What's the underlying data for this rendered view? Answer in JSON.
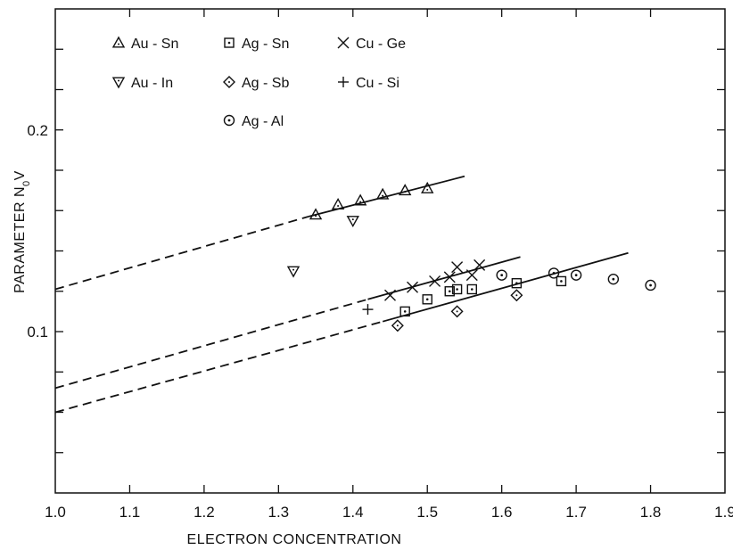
{
  "chart_data": {
    "type": "scatter",
    "title": "",
    "xlabel": "ELECTRON CONCENTRATION",
    "ylabel_main": "PARAMETER N",
    "ylabel_sub": "0",
    "ylabel_tail": "V",
    "xlim": [
      1.0,
      1.9
    ],
    "ylim": [
      0.02,
      0.26
    ],
    "x_ticks": [
      "1.0",
      "1.1",
      "1.2",
      "1.3",
      "1.4",
      "1.5",
      "1.6",
      "1.7",
      "1.8",
      "1.9"
    ],
    "y_tick_labels": [
      {
        "value": 0.1,
        "label": "0.1"
      },
      {
        "value": 0.2,
        "label": "0.2"
      }
    ],
    "legend_position": "top-left",
    "series": [
      {
        "name": "Au - Sn",
        "marker": "triangle-up",
        "points": [
          [
            1.35,
            0.158
          ],
          [
            1.38,
            0.163
          ],
          [
            1.41,
            0.165
          ],
          [
            1.44,
            0.168
          ],
          [
            1.47,
            0.17
          ],
          [
            1.5,
            0.171
          ]
        ]
      },
      {
        "name": "Au - In",
        "marker": "triangle-down",
        "points": [
          [
            1.32,
            0.13
          ],
          [
            1.4,
            0.155
          ]
        ]
      },
      {
        "name": "Ag - Sn",
        "marker": "square-dot",
        "points": [
          [
            1.47,
            0.11
          ],
          [
            1.5,
            0.116
          ],
          [
            1.53,
            0.12
          ],
          [
            1.54,
            0.121
          ],
          [
            1.56,
            0.121
          ],
          [
            1.62,
            0.124
          ],
          [
            1.68,
            0.125
          ]
        ]
      },
      {
        "name": "Ag - Sb",
        "marker": "diamond",
        "points": [
          [
            1.46,
            0.103
          ],
          [
            1.54,
            0.11
          ],
          [
            1.62,
            0.118
          ]
        ]
      },
      {
        "name": "Ag - Al",
        "marker": "circle-dot",
        "points": [
          [
            1.6,
            0.128
          ],
          [
            1.67,
            0.129
          ],
          [
            1.7,
            0.128
          ],
          [
            1.75,
            0.126
          ],
          [
            1.8,
            0.123
          ]
        ]
      },
      {
        "name": "Cu - Ge",
        "marker": "x",
        "points": [
          [
            1.45,
            0.118
          ],
          [
            1.48,
            0.122
          ],
          [
            1.51,
            0.125
          ],
          [
            1.53,
            0.127
          ],
          [
            1.54,
            0.132
          ],
          [
            1.56,
            0.128
          ],
          [
            1.57,
            0.133
          ]
        ]
      },
      {
        "name": "Cu - Si",
        "marker": "plus",
        "points": [
          [
            1.42,
            0.111
          ]
        ]
      }
    ],
    "fit_lines": [
      {
        "solid": [
          [
            1.34,
            0.157
          ],
          [
            1.55,
            0.177
          ]
        ],
        "dashed": [
          [
            1.0,
            0.121
          ],
          [
            1.34,
            0.157
          ]
        ]
      },
      {
        "solid": [
          [
            1.42,
            0.116
          ],
          [
            1.625,
            0.137
          ]
        ],
        "dashed": [
          [
            1.0,
            0.072
          ],
          [
            1.42,
            0.116
          ]
        ]
      },
      {
        "solid": [
          [
            1.44,
            0.105
          ],
          [
            1.77,
            0.139
          ]
        ],
        "dashed": [
          [
            1.0,
            0.06
          ],
          [
            1.44,
            0.105
          ]
        ]
      }
    ]
  }
}
